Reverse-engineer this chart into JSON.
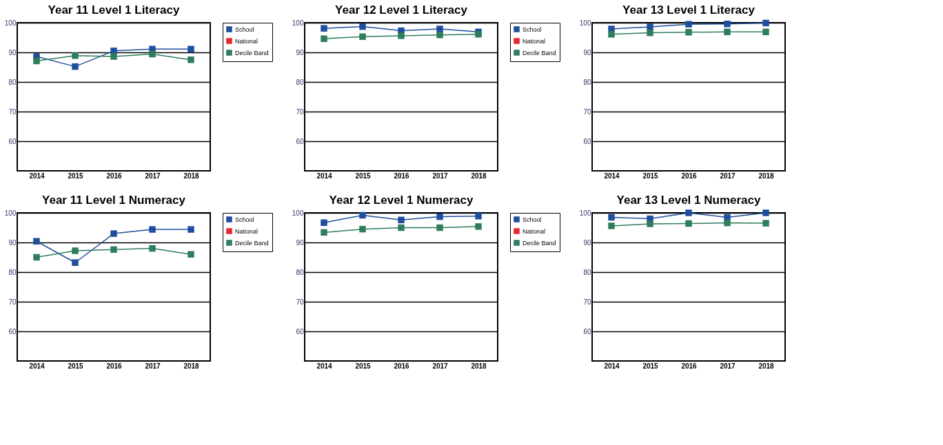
{
  "chart_data": [
    {
      "type": "line",
      "title": "Year 11 Level 1 Literacy",
      "categories": [
        "2014",
        "2015",
        "2016",
        "2017",
        "2018"
      ],
      "ylim": [
        50,
        100
      ],
      "yticks": [
        60,
        70,
        80,
        90,
        100
      ],
      "grid": "y",
      "legend": "right",
      "marker": "square",
      "series": [
        {
          "name": "School",
          "color": "#1f4e9e",
          "values": [
            88.6,
            85.2,
            90.5,
            91.1,
            91.1
          ]
        },
        {
          "name": "National",
          "color": "#e8262b",
          "values": [
            null,
            null,
            null,
            null,
            null
          ]
        },
        {
          "name": "Decile Band",
          "color": "#2e7d5b",
          "values": [
            87.1,
            88.9,
            88.6,
            89.4,
            87.5
          ]
        }
      ]
    },
    {
      "type": "line",
      "title": "Year 12 Level 1 Literacy",
      "categories": [
        "2014",
        "2015",
        "2016",
        "2017",
        "2018"
      ],
      "ylim": [
        50,
        100
      ],
      "yticks": [
        60,
        70,
        80,
        90,
        100
      ],
      "grid": "y",
      "legend": "right",
      "marker": "square",
      "series": [
        {
          "name": "School",
          "color": "#1f4e9e",
          "values": [
            98.1,
            98.7,
            97.3,
            97.9,
            96.9
          ]
        },
        {
          "name": "National",
          "color": "#e8262b",
          "values": [
            null,
            null,
            null,
            null,
            null
          ]
        },
        {
          "name": "Decile Band",
          "color": "#2e7d5b",
          "values": [
            94.6,
            95.3,
            95.6,
            95.9,
            96.1
          ]
        }
      ]
    },
    {
      "type": "line",
      "title": "Year 13 Level 1 Literacy",
      "categories": [
        "2014",
        "2015",
        "2016",
        "2017",
        "2018"
      ],
      "ylim": [
        50,
        100
      ],
      "yticks": [
        60,
        70,
        80,
        90,
        100
      ],
      "grid": "y",
      "marker": "square",
      "series": [
        {
          "color": "#1f4e9e",
          "values": [
            97.9,
            98.6,
            99.5,
            99.6,
            99.9
          ]
        },
        {
          "color": "#2e7d5b",
          "values": [
            96.1,
            96.6,
            96.8,
            96.9,
            96.9
          ]
        }
      ]
    },
    {
      "type": "line",
      "title": "Year 11 Level 1 Numeracy",
      "categories": [
        "2014",
        "2015",
        "2016",
        "2017",
        "2018"
      ],
      "ylim": [
        50,
        100
      ],
      "yticks": [
        60,
        70,
        80,
        90,
        100
      ],
      "grid": "y",
      "legend": "right",
      "marker": "square",
      "series": [
        {
          "name": "School",
          "color": "#1f4e9e",
          "values": [
            90.4,
            83.2,
            93.0,
            94.4,
            94.4
          ]
        },
        {
          "name": "National",
          "color": "#e8262b",
          "values": [
            null,
            null,
            null,
            null,
            null
          ]
        },
        {
          "name": "Decile Band",
          "color": "#2e7d5b",
          "values": [
            85.0,
            87.2,
            87.6,
            88.0,
            86.0
          ]
        }
      ]
    },
    {
      "type": "line",
      "title": "Year 12 Level 1 Numeracy",
      "categories": [
        "2014",
        "2015",
        "2016",
        "2017",
        "2018"
      ],
      "ylim": [
        50,
        100
      ],
      "yticks": [
        60,
        70,
        80,
        90,
        100
      ],
      "grid": "y",
      "legend": "right",
      "marker": "square",
      "series": [
        {
          "name": "School",
          "color": "#1f4e9e",
          "values": [
            96.7,
            99.2,
            97.6,
            98.7,
            98.9
          ]
        },
        {
          "name": "National",
          "color": "#e8262b",
          "values": [
            null,
            null,
            null,
            null,
            null
          ]
        },
        {
          "name": "Decile Band",
          "color": "#2e7d5b",
          "values": [
            93.4,
            94.5,
            95.0,
            95.0,
            95.4
          ]
        }
      ]
    },
    {
      "type": "line",
      "title": "Year 13 Level 1 Numeracy",
      "categories": [
        "2014",
        "2015",
        "2016",
        "2017",
        "2018"
      ],
      "ylim": [
        50,
        100
      ],
      "yticks": [
        60,
        70,
        80,
        90,
        100
      ],
      "grid": "y",
      "marker": "square",
      "series": [
        {
          "color": "#1f4e9e",
          "values": [
            98.5,
            98.0,
            100.0,
            98.5,
            100.0
          ]
        },
        {
          "color": "#2e7d5b",
          "values": [
            95.6,
            96.3,
            96.4,
            96.6,
            96.5
          ]
        }
      ]
    }
  ]
}
